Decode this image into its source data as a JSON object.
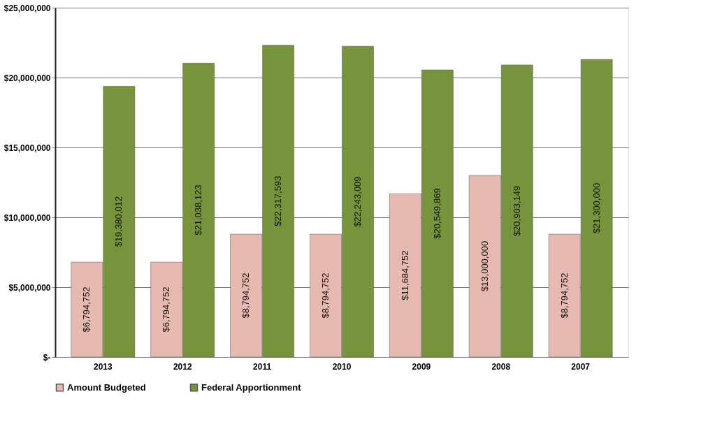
{
  "chart_data": {
    "type": "bar",
    "categories": [
      "2013",
      "2012",
      "2011",
      "2010",
      "2009",
      "2008",
      "2007"
    ],
    "series": [
      {
        "name": "Amount Budgeted",
        "color": "#e6b9b1",
        "values": [
          6794752,
          6794752,
          8794752,
          8794752,
          11684752,
          13000000,
          8794752
        ],
        "value_labels": [
          "$6,794,752",
          "$6,794,752",
          "$8,794,752",
          "$8,794,752",
          "$11,684,752",
          "$13,000,000",
          "$8,794,752"
        ]
      },
      {
        "name": "Federal Apportionment",
        "color": "#77933c",
        "values": [
          19380012,
          21038123,
          22317593,
          22243009,
          20549869,
          20903149,
          21300000
        ],
        "value_labels": [
          "$19,380,012",
          "$21,038,123",
          "$22,317,593",
          "$22,243,009",
          "$20,549,869",
          "$20,903,149",
          "$21,300,000"
        ]
      }
    ],
    "ylim": [
      0,
      25000000
    ],
    "yticks": [
      {
        "value": 0,
        "label": "$-"
      },
      {
        "value": 5000000,
        "label": "$5,000,000"
      },
      {
        "value": 10000000,
        "label": "$10,000,000"
      },
      {
        "value": 15000000,
        "label": "$15,000,000"
      },
      {
        "value": 20000000,
        "label": "$20,000,000"
      },
      {
        "value": 25000000,
        "label": "$25,000,000"
      }
    ],
    "grid": "y",
    "legend": "bottom"
  }
}
